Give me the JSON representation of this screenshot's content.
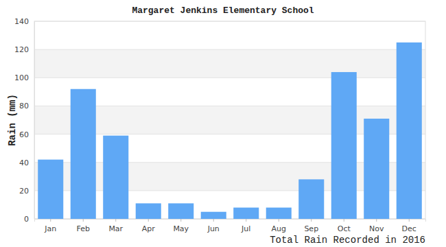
{
  "chart_data": {
    "type": "bar",
    "title": "Margaret Jenkins Elementary School",
    "y_label": "Rain (mm)",
    "x_label": "Total Rain Recorded in 2016",
    "categories": [
      "Jan",
      "Feb",
      "Mar",
      "Apr",
      "May",
      "Jun",
      "Jul",
      "Aug",
      "Sep",
      "Oct",
      "Nov",
      "Dec"
    ],
    "values": [
      42,
      92,
      59,
      11,
      11,
      5,
      8,
      8,
      28,
      104,
      71,
      125
    ],
    "color": "#5fa8f5",
    "ylim": [
      0,
      140
    ],
    "yticks": [
      0,
      20,
      40,
      60,
      80,
      100,
      120,
      140
    ],
    "grid": true
  }
}
